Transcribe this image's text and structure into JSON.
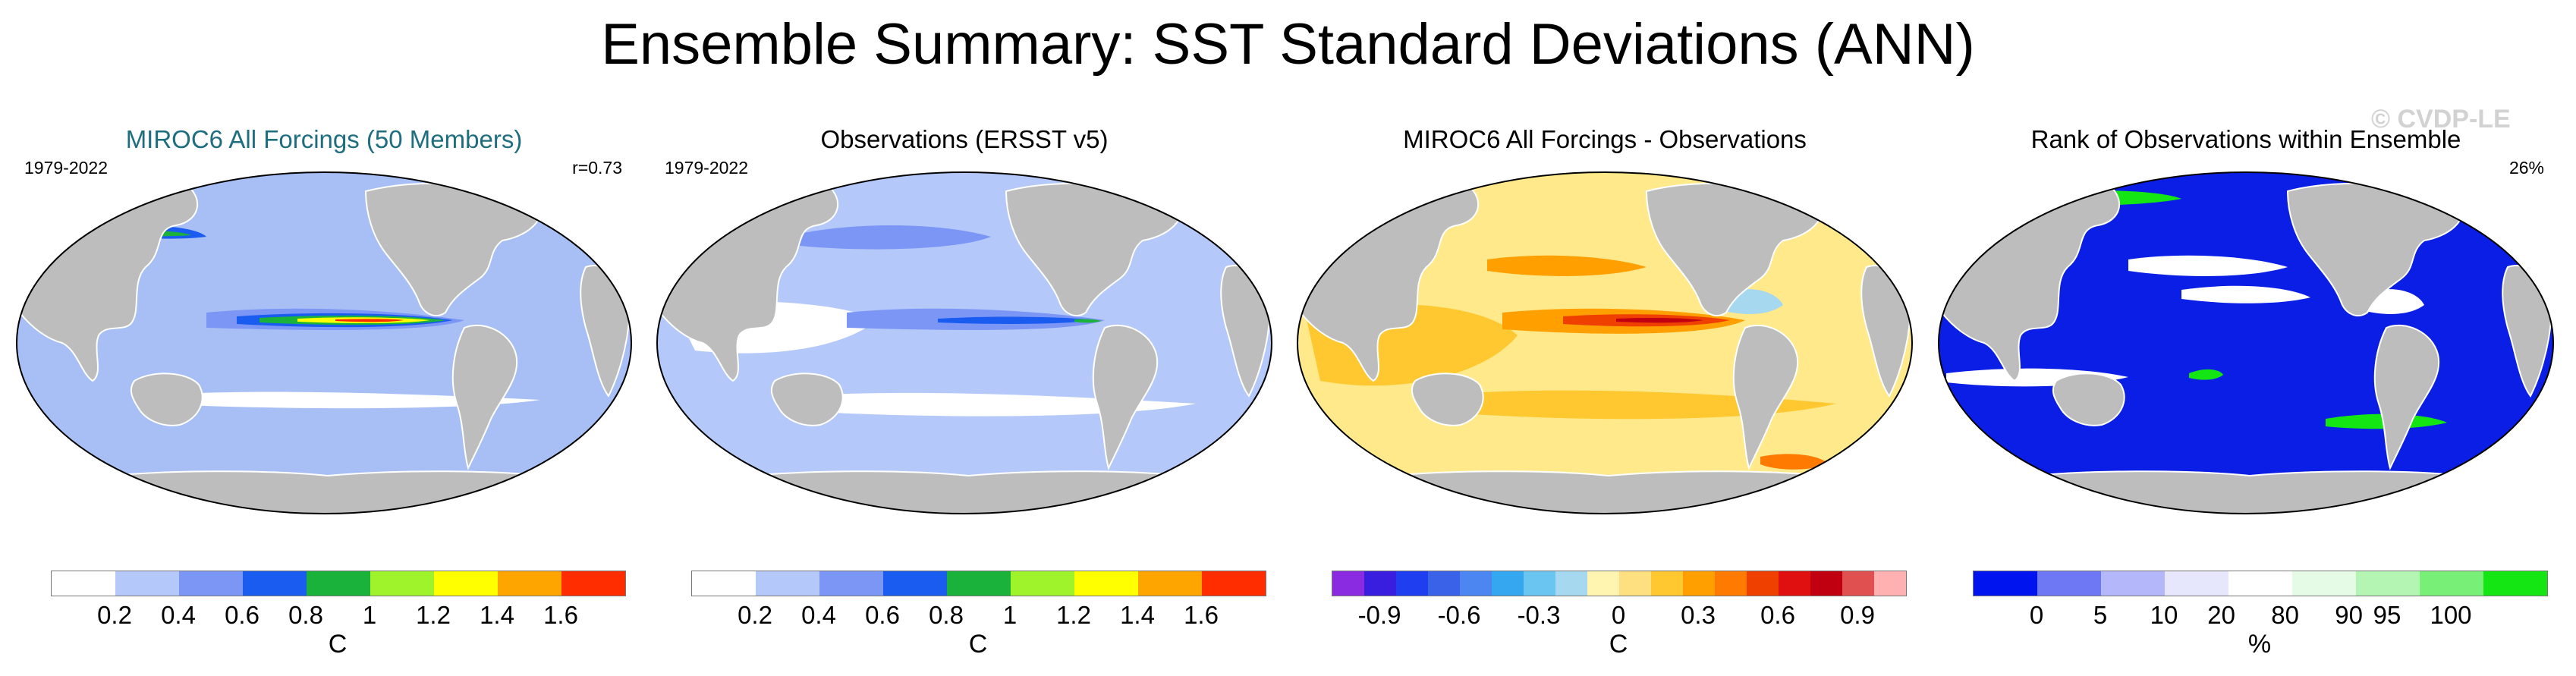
{
  "title": "Ensemble Summary: SST Standard Deviations (ANN)",
  "watermark": "© CVDP-LE",
  "panels": [
    {
      "title": "MIROC6 All Forcings (50 Members)",
      "left_label": "1979-2022",
      "right_label": "r=0.73",
      "ocean_color": "#a7bff5",
      "colorbar": {
        "colors": [
          "#ffffff",
          "#b4c8fa",
          "#7b96f5",
          "#1b5cf0",
          "#1ab23a",
          "#9ff32a",
          "#ffff00",
          "#ffa500",
          "#ff2d00"
        ],
        "ticks": [
          "0.2",
          "0.4",
          "0.6",
          "0.8",
          "1",
          "1.2",
          "1.4",
          "1.6"
        ],
        "unit": "C"
      }
    },
    {
      "title": "Observations (ERSST v5)",
      "left_label": "1979-2022",
      "right_label": "",
      "ocean_color": "#b4c8fa",
      "colorbar": {
        "colors": [
          "#ffffff",
          "#b4c8fa",
          "#7b96f5",
          "#1b5cf0",
          "#1ab23a",
          "#9ff32a",
          "#ffff00",
          "#ffa500",
          "#ff2d00"
        ],
        "ticks": [
          "0.2",
          "0.4",
          "0.6",
          "0.8",
          "1",
          "1.2",
          "1.4",
          "1.6"
        ],
        "unit": "C"
      }
    },
    {
      "title": "MIROC6 All Forcings - Observations",
      "left_label": "",
      "right_label": "",
      "ocean_color": "#ffe98a",
      "colorbar": {
        "colors": [
          "#8a2be2",
          "#3a1ee0",
          "#1e3ef0",
          "#3a62e8",
          "#4c86f0",
          "#35a6f0",
          "#6ac6f0",
          "#a6d8f0",
          "#fff4b0",
          "#ffe080",
          "#ffc830",
          "#ffa000",
          "#ff7a00",
          "#f04000",
          "#e01010",
          "#c00010",
          "#e05050",
          "#ffb0b0"
        ],
        "ticks": [
          "-0.9",
          "-0.6",
          "-0.3",
          "0",
          "0.3",
          "0.6",
          "0.9"
        ],
        "unit": "C"
      }
    },
    {
      "title": "Rank of Observations within Ensemble",
      "left_label": "",
      "right_label": "26%",
      "ocean_color": "#0a1ee6",
      "colorbar": {
        "colors": [
          "#0014f0",
          "#6e78f5",
          "#b4b8fa",
          "#e6e6fc",
          "#ffffff",
          "#e6fbe6",
          "#b4f5b4",
          "#78f078",
          "#14e614"
        ],
        "ticks": [
          "0",
          "5",
          "10",
          "20",
          "80",
          "90",
          "95",
          "100"
        ],
        "unit": "%"
      }
    }
  ]
}
